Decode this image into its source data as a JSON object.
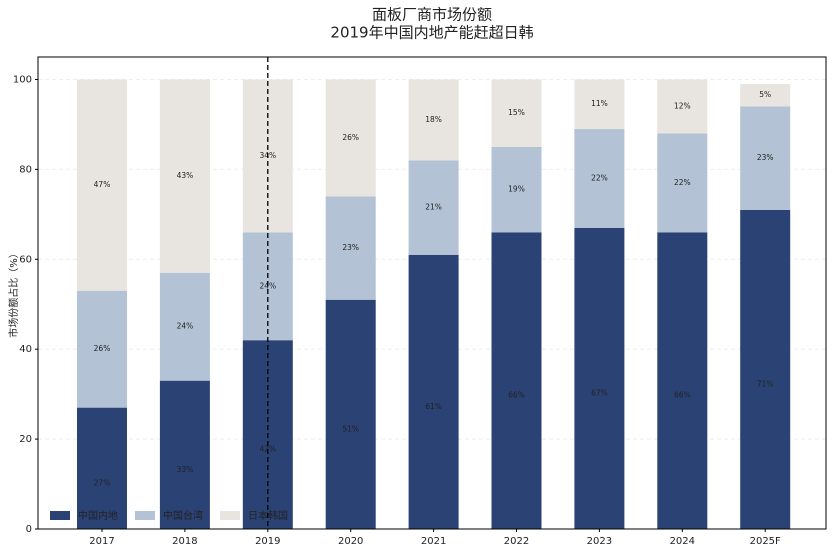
{
  "chart_data": {
    "type": "stacked_bar",
    "title": "面板厂商市场份额",
    "subtitle": "2019年中国内地产能赶超日韩",
    "y_label": "市场份额占比（%）",
    "categories": [
      "2017",
      "2018",
      "2019",
      "2020",
      "2021",
      "2022",
      "2023",
      "2024",
      "2025F"
    ],
    "series": [
      {
        "name": "中国内地",
        "color": "#2b4275",
        "values": [
          27,
          33,
          42,
          51,
          61,
          66,
          67,
          66,
          71
        ],
        "value_labels": [
          "27%",
          "33%",
          "42%",
          "51%",
          "61%",
          "66%",
          "67%",
          "66%",
          "71%"
        ]
      },
      {
        "name": "中国台湾",
        "color": "#b3c2d4",
        "values": [
          26,
          24,
          24,
          23,
          21,
          19,
          22,
          22,
          23
        ],
        "value_labels": [
          "26%",
          "24%",
          "24%",
          "23%",
          "21%",
          "19%",
          "22%",
          "22%",
          "23%"
        ]
      },
      {
        "name": "日本韩国",
        "color": "#e8e4df",
        "values": [
          47,
          43,
          34,
          26,
          18,
          15,
          11,
          12,
          5
        ],
        "value_labels": [
          "47%",
          "43%",
          "34%",
          "26%",
          "18%",
          "15%",
          "11%",
          "12%",
          "5%"
        ]
      }
    ],
    "ylim": [
      0,
      105
    ],
    "yticks": [
      0,
      20,
      40,
      60,
      80,
      100
    ],
    "grid": true,
    "legend": "lower-left",
    "reference_line": {
      "category": "2019",
      "style": "dashed"
    }
  }
}
